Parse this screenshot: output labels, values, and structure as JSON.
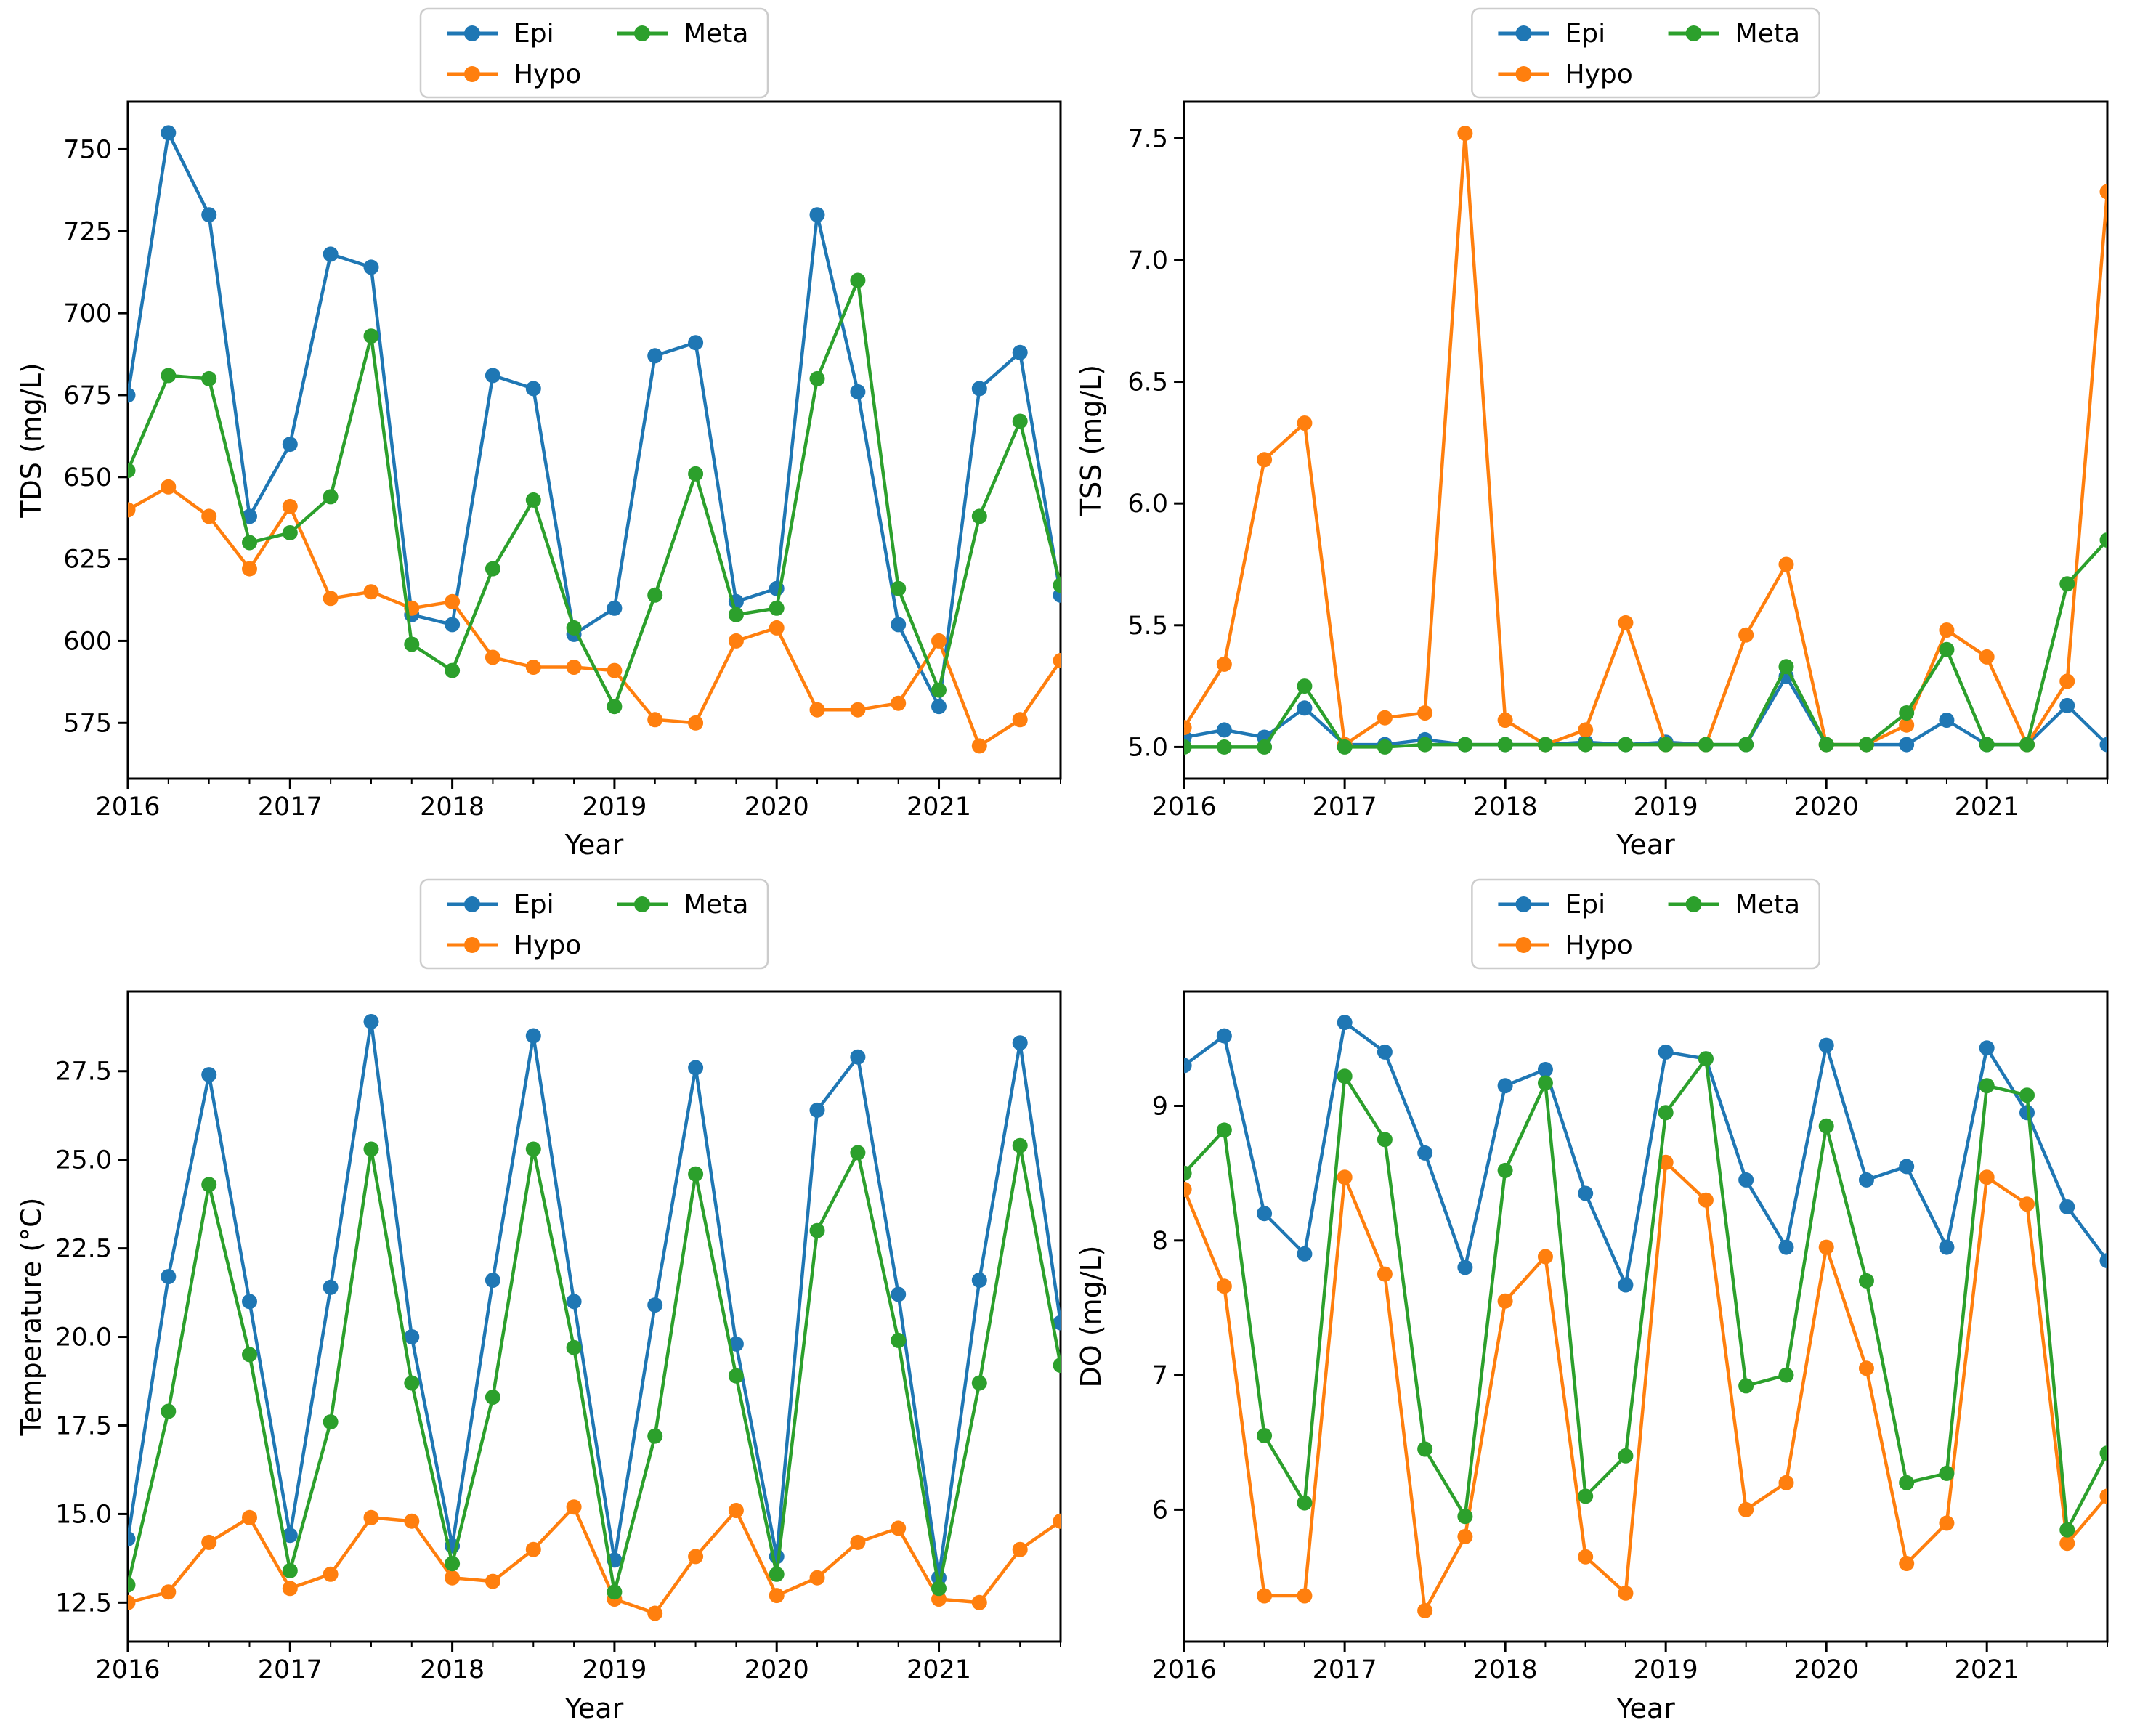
{
  "page": {
    "background": "#ffffff"
  },
  "legend": {
    "items": [
      {
        "label": "Epi",
        "color": "#1f77b4"
      },
      {
        "label": "Hypo",
        "color": "#ff7f0e"
      },
      {
        "label": "Meta",
        "color": "#2ca02c"
      }
    ]
  },
  "chart_data": [
    {
      "id": "tds",
      "type": "line",
      "title": "",
      "xlabel": "Year",
      "ylabel": "TDS (mg/L)",
      "grid": false,
      "legend_position": "above-center-2col",
      "xlim": [
        2016.0,
        2021.75
      ],
      "ylim": [
        558.0,
        764.5
      ],
      "xticks": {
        "values": [
          2016,
          2017,
          2018,
          2019,
          2020,
          2021
        ],
        "labels": [
          "2016",
          "2017",
          "2018",
          "2019",
          "2020",
          "2021"
        ]
      },
      "yticks": {
        "values": [
          575,
          600,
          625,
          650,
          675,
          700,
          725,
          750
        ],
        "labels": [
          "575",
          "600",
          "625",
          "650",
          "675",
          "700",
          "725",
          "750"
        ]
      },
      "x": [
        2016.0,
        2016.25,
        2016.5,
        2016.75,
        2017.0,
        2017.25,
        2017.5,
        2017.75,
        2018.0,
        2018.25,
        2018.5,
        2018.75,
        2019.0,
        2019.25,
        2019.5,
        2019.75,
        2020.0,
        2020.25,
        2020.5,
        2020.75,
        2021.0,
        2021.25,
        2021.5,
        2021.75
      ],
      "series": [
        {
          "name": "Epi",
          "color": "#1f77b4",
          "values": [
            675,
            755,
            730,
            638,
            660,
            718,
            714,
            608,
            605,
            681,
            677,
            602,
            610,
            687,
            691,
            612,
            616,
            730,
            676,
            605,
            580,
            677,
            688,
            614
          ]
        },
        {
          "name": "Hypo",
          "color": "#ff7f0e",
          "values": [
            640,
            647,
            638,
            622,
            641,
            613,
            615,
            610,
            612,
            595,
            592,
            592,
            591,
            576,
            575,
            600,
            604,
            579,
            579,
            581,
            600,
            568,
            576,
            594
          ]
        },
        {
          "name": "Meta",
          "color": "#2ca02c",
          "values": [
            652,
            681,
            680,
            630,
            633,
            644,
            693,
            599,
            591,
            622,
            643,
            604,
            580,
            614,
            651,
            608,
            610,
            680,
            710,
            616,
            585,
            638,
            667,
            617
          ]
        }
      ]
    },
    {
      "id": "tss",
      "type": "line",
      "title": "",
      "xlabel": "Year",
      "ylabel": "TSS (mg/L)",
      "grid": false,
      "legend_position": "above-center-2col",
      "xlim": [
        2016.0,
        2021.75
      ],
      "ylim": [
        4.87,
        7.65
      ],
      "xticks": {
        "values": [
          2016,
          2017,
          2018,
          2019,
          2020,
          2021
        ],
        "labels": [
          "2016",
          "2017",
          "2018",
          "2019",
          "2020",
          "2021"
        ]
      },
      "yticks": {
        "values": [
          5.0,
          5.5,
          6.0,
          6.5,
          7.0,
          7.5
        ],
        "labels": [
          "5.0",
          "5.5",
          "6.0",
          "6.5",
          "7.0",
          "7.5"
        ]
      },
      "x": [
        2016.0,
        2016.25,
        2016.5,
        2016.75,
        2017.0,
        2017.25,
        2017.5,
        2017.75,
        2018.0,
        2018.25,
        2018.5,
        2018.75,
        2019.0,
        2019.25,
        2019.5,
        2019.75,
        2020.0,
        2020.25,
        2020.5,
        2020.75,
        2021.0,
        2021.25,
        2021.5,
        2021.75
      ],
      "series": [
        {
          "name": "Epi",
          "color": "#1f77b4",
          "values": [
            5.04,
            5.07,
            5.04,
            5.16,
            5.01,
            5.01,
            5.03,
            5.01,
            5.01,
            5.01,
            5.02,
            5.01,
            5.02,
            5.01,
            5.01,
            5.29,
            5.01,
            5.01,
            5.01,
            5.11,
            5.01,
            5.01,
            5.17,
            5.01
          ]
        },
        {
          "name": "Hypo",
          "color": "#ff7f0e",
          "values": [
            5.08,
            5.34,
            6.18,
            6.33,
            5.01,
            5.12,
            5.14,
            7.52,
            5.11,
            5.01,
            5.07,
            5.51,
            5.01,
            5.01,
            5.46,
            5.75,
            5.01,
            5.01,
            5.09,
            5.48,
            5.37,
            5.01,
            5.27,
            7.28
          ]
        },
        {
          "name": "Meta",
          "color": "#2ca02c",
          "values": [
            5.0,
            5.0,
            5.0,
            5.25,
            5.0,
            5.0,
            5.01,
            5.01,
            5.01,
            5.01,
            5.01,
            5.01,
            5.01,
            5.01,
            5.01,
            5.33,
            5.01,
            5.01,
            5.14,
            5.4,
            5.01,
            5.01,
            5.67,
            5.85
          ]
        }
      ]
    },
    {
      "id": "temperature",
      "type": "line",
      "title": "",
      "xlabel": "Year",
      "ylabel": "Temperature (°C)",
      "grid": false,
      "legend_position": "above-center-2col",
      "xlim": [
        2016.0,
        2021.75
      ],
      "ylim": [
        11.4,
        29.75
      ],
      "xticks": {
        "values": [
          2016,
          2017,
          2018,
          2019,
          2020,
          2021
        ],
        "labels": [
          "2016",
          "2017",
          "2018",
          "2019",
          "2020",
          "2021"
        ]
      },
      "yticks": {
        "values": [
          12.5,
          15.0,
          17.5,
          20.0,
          22.5,
          25.0,
          27.5
        ],
        "labels": [
          "12.5",
          "15.0",
          "17.5",
          "20.0",
          "22.5",
          "25.0",
          "27.5"
        ]
      },
      "x": [
        2016.0,
        2016.25,
        2016.5,
        2016.75,
        2017.0,
        2017.25,
        2017.5,
        2017.75,
        2018.0,
        2018.25,
        2018.5,
        2018.75,
        2019.0,
        2019.25,
        2019.5,
        2019.75,
        2020.0,
        2020.25,
        2020.5,
        2020.75,
        2021.0,
        2021.25,
        2021.5,
        2021.75
      ],
      "series": [
        {
          "name": "Epi",
          "color": "#1f77b4",
          "values": [
            14.3,
            21.7,
            27.4,
            21.0,
            14.4,
            21.4,
            28.9,
            20.0,
            14.1,
            21.6,
            28.5,
            21.0,
            13.7,
            20.9,
            27.6,
            19.8,
            13.8,
            26.4,
            27.9,
            21.2,
            13.2,
            21.6,
            28.3,
            20.4
          ]
        },
        {
          "name": "Hypo",
          "color": "#ff7f0e",
          "values": [
            12.5,
            12.8,
            14.2,
            14.9,
            12.9,
            13.3,
            14.9,
            14.8,
            13.2,
            13.1,
            14.0,
            15.2,
            12.6,
            12.2,
            13.8,
            15.1,
            12.7,
            13.2,
            14.2,
            14.6,
            12.6,
            12.5,
            14.0,
            14.8
          ]
        },
        {
          "name": "Meta",
          "color": "#2ca02c",
          "values": [
            13.0,
            17.9,
            24.3,
            19.5,
            13.4,
            17.6,
            25.3,
            18.7,
            13.6,
            18.3,
            25.3,
            19.7,
            12.8,
            17.2,
            24.6,
            18.9,
            13.3,
            23.0,
            25.2,
            19.9,
            12.9,
            18.7,
            25.4,
            19.2
          ]
        }
      ]
    },
    {
      "id": "do",
      "type": "line",
      "title": "",
      "xlabel": "Year",
      "ylabel": "DO (mg/L)",
      "grid": false,
      "legend_position": "above-center-2col",
      "xlim": [
        2016.0,
        2021.75
      ],
      "ylim": [
        5.02,
        9.85
      ],
      "xticks": {
        "values": [
          2016,
          2017,
          2018,
          2019,
          2020,
          2021
        ],
        "labels": [
          "2016",
          "2017",
          "2018",
          "2019",
          "2020",
          "2021"
        ]
      },
      "yticks": {
        "values": [
          6,
          7,
          8,
          9
        ],
        "labels": [
          "6",
          "7",
          "8",
          "9"
        ]
      },
      "x": [
        2016.0,
        2016.25,
        2016.5,
        2016.75,
        2017.0,
        2017.25,
        2017.5,
        2017.75,
        2018.0,
        2018.25,
        2018.5,
        2018.75,
        2019.0,
        2019.25,
        2019.5,
        2019.75,
        2020.0,
        2020.25,
        2020.5,
        2020.75,
        2021.0,
        2021.25,
        2021.5,
        2021.75
      ],
      "series": [
        {
          "name": "Epi",
          "color": "#1f77b4",
          "values": [
            9.3,
            9.52,
            8.2,
            7.9,
            9.62,
            9.4,
            8.65,
            7.8,
            9.15,
            9.27,
            8.35,
            7.67,
            9.4,
            9.35,
            8.45,
            7.95,
            9.45,
            8.45,
            8.55,
            7.95,
            9.43,
            8.95,
            8.25,
            7.85
          ]
        },
        {
          "name": "Hypo",
          "color": "#ff7f0e",
          "values": [
            8.38,
            7.66,
            5.36,
            5.36,
            8.47,
            7.75,
            5.25,
            5.8,
            7.55,
            7.88,
            5.65,
            5.38,
            8.58,
            8.3,
            6.0,
            6.2,
            7.95,
            7.05,
            5.6,
            5.9,
            8.47,
            8.27,
            5.75,
            6.1
          ]
        },
        {
          "name": "Meta",
          "color": "#2ca02c",
          "values": [
            8.5,
            8.82,
            6.55,
            6.05,
            9.22,
            8.75,
            6.45,
            5.95,
            8.52,
            9.17,
            6.1,
            6.4,
            8.95,
            9.35,
            6.92,
            7.0,
            8.85,
            7.7,
            6.2,
            6.27,
            9.15,
            9.08,
            5.85,
            6.42
          ]
        }
      ]
    }
  ]
}
